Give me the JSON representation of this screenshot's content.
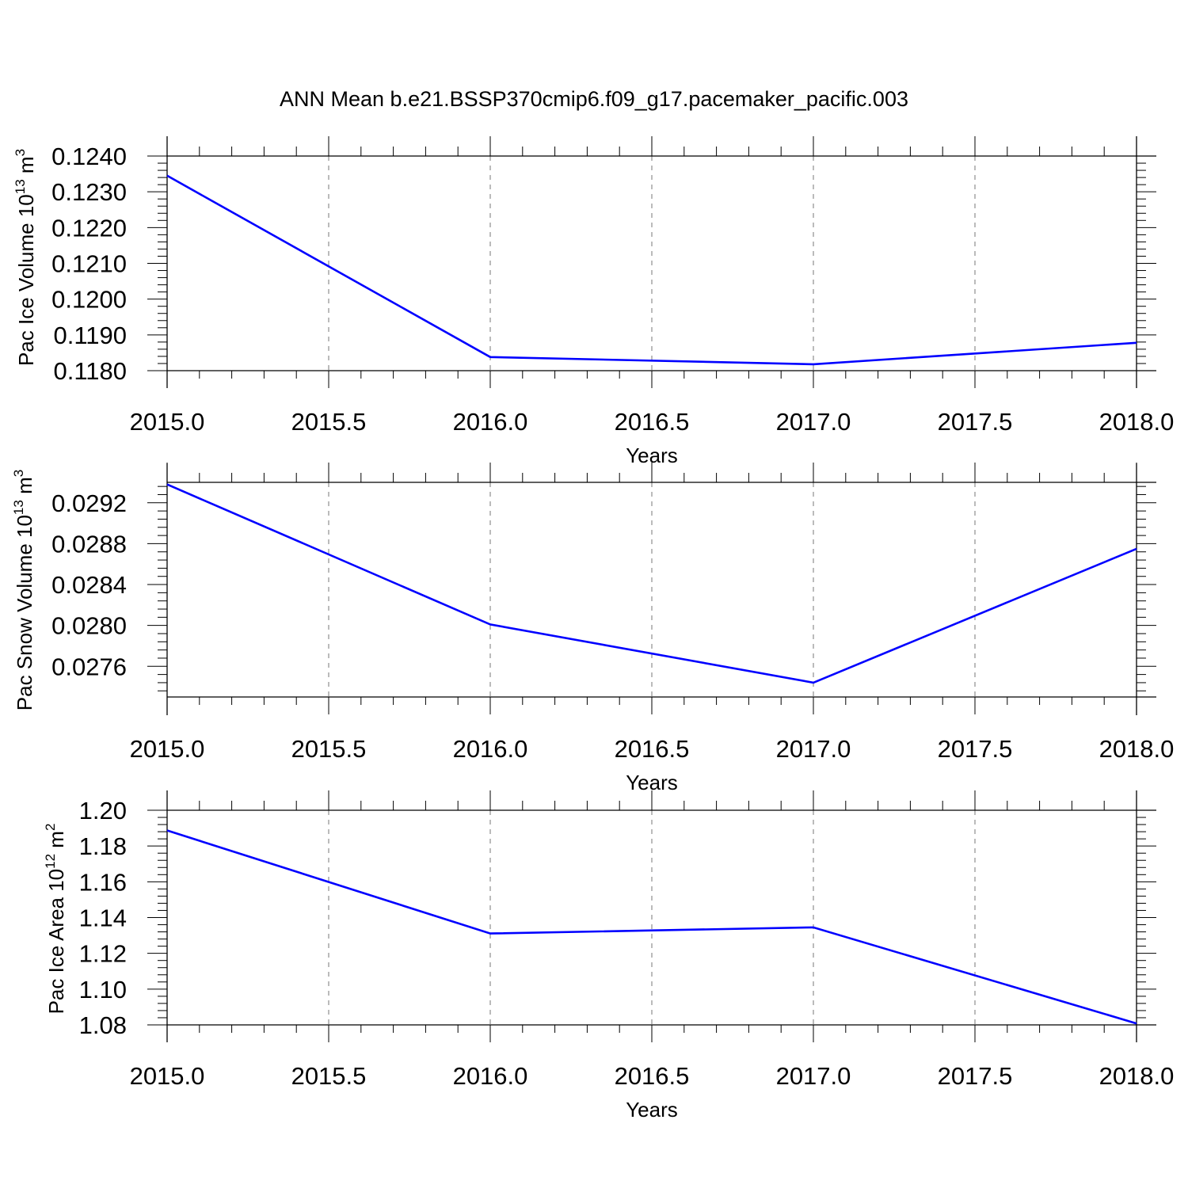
{
  "title": "ANN Mean b.e21.BSSP370cmip6.f09_g17.pacemaker_pacific.003",
  "colors": {
    "line": "#0000ff",
    "axis": "#000000",
    "grid": "#777777"
  },
  "chart_data": [
    {
      "type": "line",
      "ylabel": {
        "prefix": "Pac Ice Volume 10",
        "exp": "13",
        "unit": " m",
        "unit_exp": "3"
      },
      "xlabel": "Years",
      "xlim": [
        2015.0,
        2018.0
      ],
      "ylim": [
        0.118,
        0.124
      ],
      "xticks": [
        "2015.0",
        "2015.5",
        "2016.0",
        "2016.5",
        "2017.0",
        "2017.5",
        "2018.0"
      ],
      "yticks": [
        "0.1180",
        "0.1190",
        "0.1200",
        "0.1210",
        "0.1220",
        "0.1230",
        "0.1240"
      ],
      "grid": "dashed vertical",
      "series": [
        {
          "x": [
            2015,
            2016,
            2017,
            2018
          ],
          "y": [
            0.12345,
            0.11838,
            0.11818,
            0.11878
          ]
        }
      ]
    },
    {
      "type": "line",
      "ylabel": {
        "prefix": "Pac Snow Volume 10",
        "exp": "13",
        "unit": " m",
        "unit_exp": "3"
      },
      "xlabel": "Years",
      "xlim": [
        2015.0,
        2018.0
      ],
      "ylim": [
        0.0273,
        0.0294
      ],
      "xticks": [
        "2015.0",
        "2015.5",
        "2016.0",
        "2016.5",
        "2017.0",
        "2017.5",
        "2018.0"
      ],
      "yticks": [
        "0.0276",
        "0.0280",
        "0.0284",
        "0.0288",
        "0.0292"
      ],
      "grid": "dashed vertical",
      "series": [
        {
          "x": [
            2015,
            2016,
            2017,
            2018
          ],
          "y": [
            0.02938,
            0.02801,
            0.02744,
            0.02875
          ]
        }
      ]
    },
    {
      "type": "line",
      "ylabel": {
        "prefix": "Pac Ice Area 10",
        "exp": "12",
        "unit": " m",
        "unit_exp": "2"
      },
      "xlabel": "Years",
      "xlim": [
        2015.0,
        2018.0
      ],
      "ylim": [
        1.08,
        1.2
      ],
      "xticks": [
        "2015.0",
        "2015.5",
        "2016.0",
        "2016.5",
        "2017.0",
        "2017.5",
        "2018.0"
      ],
      "yticks": [
        "1.08",
        "1.10",
        "1.12",
        "1.14",
        "1.16",
        "1.18",
        "1.20"
      ],
      "grid": "dashed vertical",
      "series": [
        {
          "x": [
            2015,
            2016,
            2017,
            2018
          ],
          "y": [
            1.1887,
            1.1311,
            1.1345,
            1.0808
          ]
        }
      ]
    }
  ]
}
